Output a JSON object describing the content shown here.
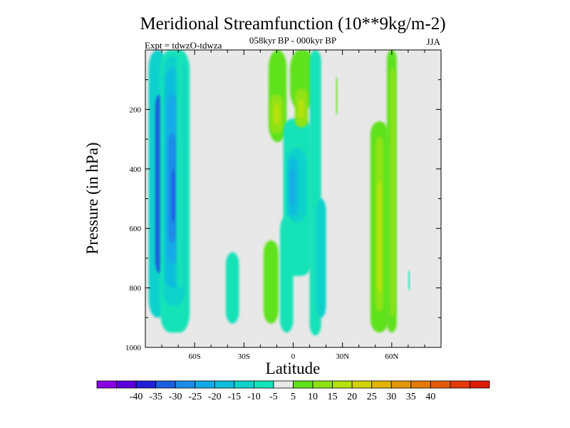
{
  "chart_data": {
    "type": "heatmap",
    "title": "Meridional Streamfunction (10**9kg/m-2)",
    "subtitle": "058kyr BP - 000kyr BP",
    "left_note": "Expt = tdwzO-tdwza",
    "right_note": "JJA",
    "xlabel": "Latitude",
    "ylabel": "Pressure (in hPa)",
    "xlim": [
      -90,
      90
    ],
    "ylim": [
      1000,
      0
    ],
    "x_ticks": [
      {
        "value": -60,
        "label": "60S"
      },
      {
        "value": -30,
        "label": "30S"
      },
      {
        "value": 0,
        "label": "0"
      },
      {
        "value": 30,
        "label": "30N"
      },
      {
        "value": 60,
        "label": "60N"
      }
    ],
    "y_ticks": [
      {
        "value": 200,
        "label": "200"
      },
      {
        "value": 400,
        "label": "400"
      },
      {
        "value": 600,
        "label": "600"
      },
      {
        "value": 800,
        "label": "800"
      },
      {
        "value": 1000,
        "label": "1000"
      }
    ],
    "background_color": "#e8e8e8",
    "colorbar": {
      "colors": [
        "#8a00e6",
        "#5a00dc",
        "#2020d8",
        "#1c5ee0",
        "#1a8ce8",
        "#14aae8",
        "#10bedc",
        "#10d2cc",
        "#14e2b8",
        "#e8e8e8",
        "#5ee21c",
        "#8ee214",
        "#b4e20c",
        "#d2d20a",
        "#e2b408",
        "#e29608",
        "#e27a08",
        "#e25c08",
        "#e23a08",
        "#dc1c08"
      ],
      "labels": [
        "-40",
        "-35",
        "-30",
        "-25",
        "-20",
        "-15",
        "-10",
        "-5",
        "5",
        "10",
        "15",
        "20",
        "25",
        "30",
        "35",
        "40"
      ]
    },
    "regions": [
      {
        "lat": [
          -88,
          -77
        ],
        "p": [
          0,
          900
        ],
        "v": -10
      },
      {
        "lat": [
          -84,
          -79
        ],
        "p": [
          150,
          750
        ],
        "v": -30
      },
      {
        "lat": [
          -81,
          -63
        ],
        "p": [
          0,
          950
        ],
        "v": -5
      },
      {
        "lat": [
          -79,
          -66
        ],
        "p": [
          20,
          860
        ],
        "v": -10
      },
      {
        "lat": [
          -78,
          -68
        ],
        "p": [
          60,
          800
        ],
        "v": -15
      },
      {
        "lat": [
          -77,
          -70
        ],
        "p": [
          150,
          720
        ],
        "v": -20
      },
      {
        "lat": [
          -76,
          -71
        ],
        "p": [
          280,
          650
        ],
        "v": -25
      },
      {
        "lat": [
          -74,
          -72
        ],
        "p": [
          400,
          580
        ],
        "v": -30
      },
      {
        "lat": [
          -71,
          -67
        ],
        "p": [
          0,
          800
        ],
        "v": -5
      },
      {
        "lat": [
          -41,
          -33
        ],
        "p": [
          680,
          920
        ],
        "v": -5
      },
      {
        "lat": [
          -18,
          -9
        ],
        "p": [
          640,
          920
        ],
        "v": 5
      },
      {
        "lat": [
          -15,
          -4
        ],
        "p": [
          0,
          310
        ],
        "v": 5
      },
      {
        "lat": [
          -14,
          -6
        ],
        "p": [
          150,
          280
        ],
        "v": 10
      },
      {
        "lat": [
          -12,
          -8
        ],
        "p": [
          180,
          250
        ],
        "v": 15
      },
      {
        "lat": [
          -6,
          11
        ],
        "p": [
          230,
          760
        ],
        "v": -5
      },
      {
        "lat": [
          -4,
          8
        ],
        "p": [
          330,
          580
        ],
        "v": -10
      },
      {
        "lat": [
          -3,
          3
        ],
        "p": [
          360,
          560
        ],
        "v": -15
      },
      {
        "lat": [
          -2,
          1
        ],
        "p": [
          400,
          520
        ],
        "v": -20
      },
      {
        "lat": [
          -8,
          0
        ],
        "p": [
          560,
          950
        ],
        "v": -5
      },
      {
        "lat": [
          -2,
          13
        ],
        "p": [
          0,
          200
        ],
        "v": 5
      },
      {
        "lat": [
          1,
          9
        ],
        "p": [
          130,
          260
        ],
        "v": 10
      },
      {
        "lat": [
          3,
          7
        ],
        "p": [
          165,
          230
        ],
        "v": 15
      },
      {
        "lat": [
          10,
          17
        ],
        "p": [
          0,
          960
        ],
        "v": -5
      },
      {
        "lat": [
          14,
          20
        ],
        "p": [
          500,
          900
        ],
        "v": -10
      },
      {
        "lat": [
          26,
          27
        ],
        "p": [
          90,
          220
        ],
        "v": 5
      },
      {
        "lat": [
          47,
          58
        ],
        "p": [
          240,
          950
        ],
        "v": 5
      },
      {
        "lat": [
          50,
          55
        ],
        "p": [
          290,
          880
        ],
        "v": 10
      },
      {
        "lat": [
          51,
          54
        ],
        "p": [
          440,
          820
        ],
        "v": 15
      },
      {
        "lat": [
          57,
          63
        ],
        "p": [
          0,
          950
        ],
        "v": 5
      },
      {
        "lat": [
          59,
          62
        ],
        "p": [
          60,
          900
        ],
        "v": 10
      },
      {
        "lat": [
          70,
          71
        ],
        "p": [
          740,
          810
        ],
        "v": -5
      }
    ]
  }
}
